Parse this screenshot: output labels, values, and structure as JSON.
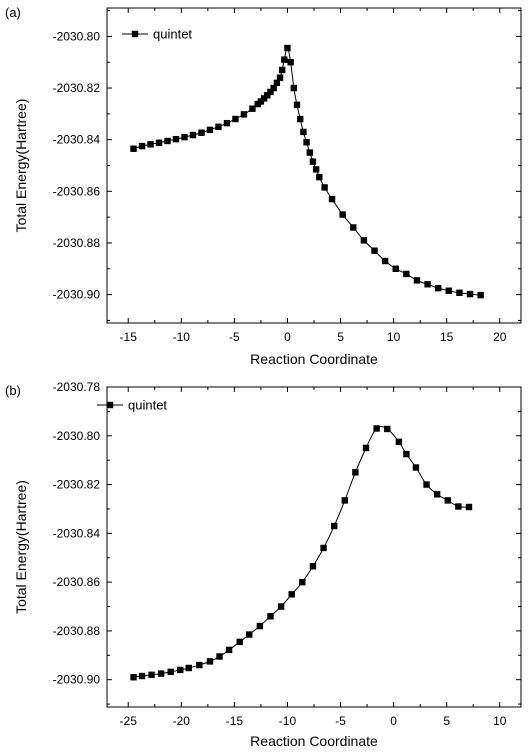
{
  "chart_data": [
    {
      "type": "line",
      "panel_label": "(a)",
      "xlabel": "Reaction Coordinate",
      "ylabel": "Total Energy(Hartree)",
      "xlim": [
        -17,
        22
      ],
      "ylim": [
        -2030.911,
        -2030.789
      ],
      "xticks": [
        -15,
        -10,
        -5,
        0,
        5,
        10,
        15,
        20
      ],
      "yticks": [
        -2030.8,
        -2030.82,
        -2030.84,
        -2030.86,
        -2030.88,
        -2030.9
      ],
      "ytick_labels": [
        "-2030.80",
        "-2030.82",
        "-2030.84",
        "-2030.86",
        "-2030.88",
        "-2030.90"
      ],
      "grid": false,
      "legend_position": "top-left",
      "series": [
        {
          "name": "quintet",
          "marker": "square",
          "color": "#000000",
          "x": [
            -14.5,
            -13.7,
            -12.9,
            -12.1,
            -11.3,
            -10.5,
            -9.7,
            -8.9,
            -8.1,
            -7.3,
            -6.5,
            -5.7,
            -4.9,
            -4.1,
            -3.3,
            -2.8,
            -2.5,
            -2.2,
            -1.9,
            -1.6,
            -1.3,
            -1.0,
            -0.7,
            -0.5,
            -0.3,
            0.0,
            0.3,
            0.6,
            0.9,
            1.2,
            1.5,
            1.8,
            2.1,
            2.4,
            2.7,
            3.0,
            3.5,
            4.2,
            5.2,
            6.2,
            7.2,
            8.2,
            9.2,
            10.2,
            11.2,
            12.2,
            13.2,
            14.2,
            15.2,
            16.2,
            17.2,
            18.2
          ],
          "y": [
            -2030.8435,
            -2030.8425,
            -2030.8418,
            -2030.8412,
            -2030.8405,
            -2030.8398,
            -2030.839,
            -2030.8382,
            -2030.8373,
            -2030.8362,
            -2030.835,
            -2030.8336,
            -2030.832,
            -2030.8302,
            -2030.828,
            -2030.8262,
            -2030.8252,
            -2030.824,
            -2030.8228,
            -2030.8215,
            -2030.82,
            -2030.818,
            -2030.816,
            -2030.813,
            -2030.809,
            -2030.8045,
            -2030.81,
            -2030.82,
            -2030.8265,
            -2030.832,
            -2030.837,
            -2030.841,
            -2030.845,
            -2030.8485,
            -2030.8515,
            -2030.8545,
            -2030.8585,
            -2030.863,
            -2030.869,
            -2030.874,
            -2030.879,
            -2030.883,
            -2030.887,
            -2030.89,
            -2030.892,
            -2030.8945,
            -2030.896,
            -2030.8975,
            -2030.8985,
            -2030.8993,
            -2030.8998,
            -2030.9002
          ]
        }
      ]
    },
    {
      "type": "line",
      "panel_label": "(b)",
      "xlabel": "Reaction Coordinate",
      "ylabel": "Total Energy(Hartree)",
      "xlim": [
        -27,
        12
      ],
      "ylim": [
        -2030.9112,
        -2030.78
      ],
      "xticks": [
        -25,
        -20,
        -15,
        -10,
        -5,
        0,
        5,
        10
      ],
      "yticks": [
        -2030.78,
        -2030.8,
        -2030.82,
        -2030.84,
        -2030.86,
        -2030.88,
        -2030.9
      ],
      "ytick_labels": [
        "-2030.78",
        "-2030.80",
        "-2030.82",
        "-2030.84",
        "-2030.86",
        "-2030.88",
        "-2030.90"
      ],
      "grid": false,
      "legend_position": "top-left",
      "series": [
        {
          "name": "quintet",
          "marker": "square",
          "color": "#000000",
          "x": [
            -24.5,
            -23.7,
            -22.8,
            -21.9,
            -21.0,
            -20.1,
            -19.3,
            -18.3,
            -17.3,
            -16.4,
            -15.5,
            -14.5,
            -13.6,
            -12.6,
            -11.6,
            -10.6,
            -9.6,
            -8.6,
            -7.6,
            -6.6,
            -5.6,
            -4.6,
            -3.6,
            -2.6,
            -1.6,
            -0.6,
            0.5,
            1.2,
            2.1,
            3.1,
            4.1,
            5.1,
            6.1,
            7.1
          ],
          "y": [
            -2030.899,
            -2030.8985,
            -2030.898,
            -2030.8975,
            -2030.8968,
            -2030.896,
            -2030.8952,
            -2030.894,
            -2030.8925,
            -2030.8905,
            -2030.8878,
            -2030.8845,
            -2030.8815,
            -2030.878,
            -2030.874,
            -2030.87,
            -2030.865,
            -2030.86,
            -2030.8535,
            -2030.846,
            -2030.837,
            -2030.8265,
            -2030.815,
            -2030.805,
            -2030.797,
            -2030.7972,
            -2030.8025,
            -2030.8075,
            -2030.813,
            -2030.82,
            -2030.824,
            -2030.8265,
            -2030.829,
            -2030.8292
          ]
        }
      ]
    }
  ]
}
